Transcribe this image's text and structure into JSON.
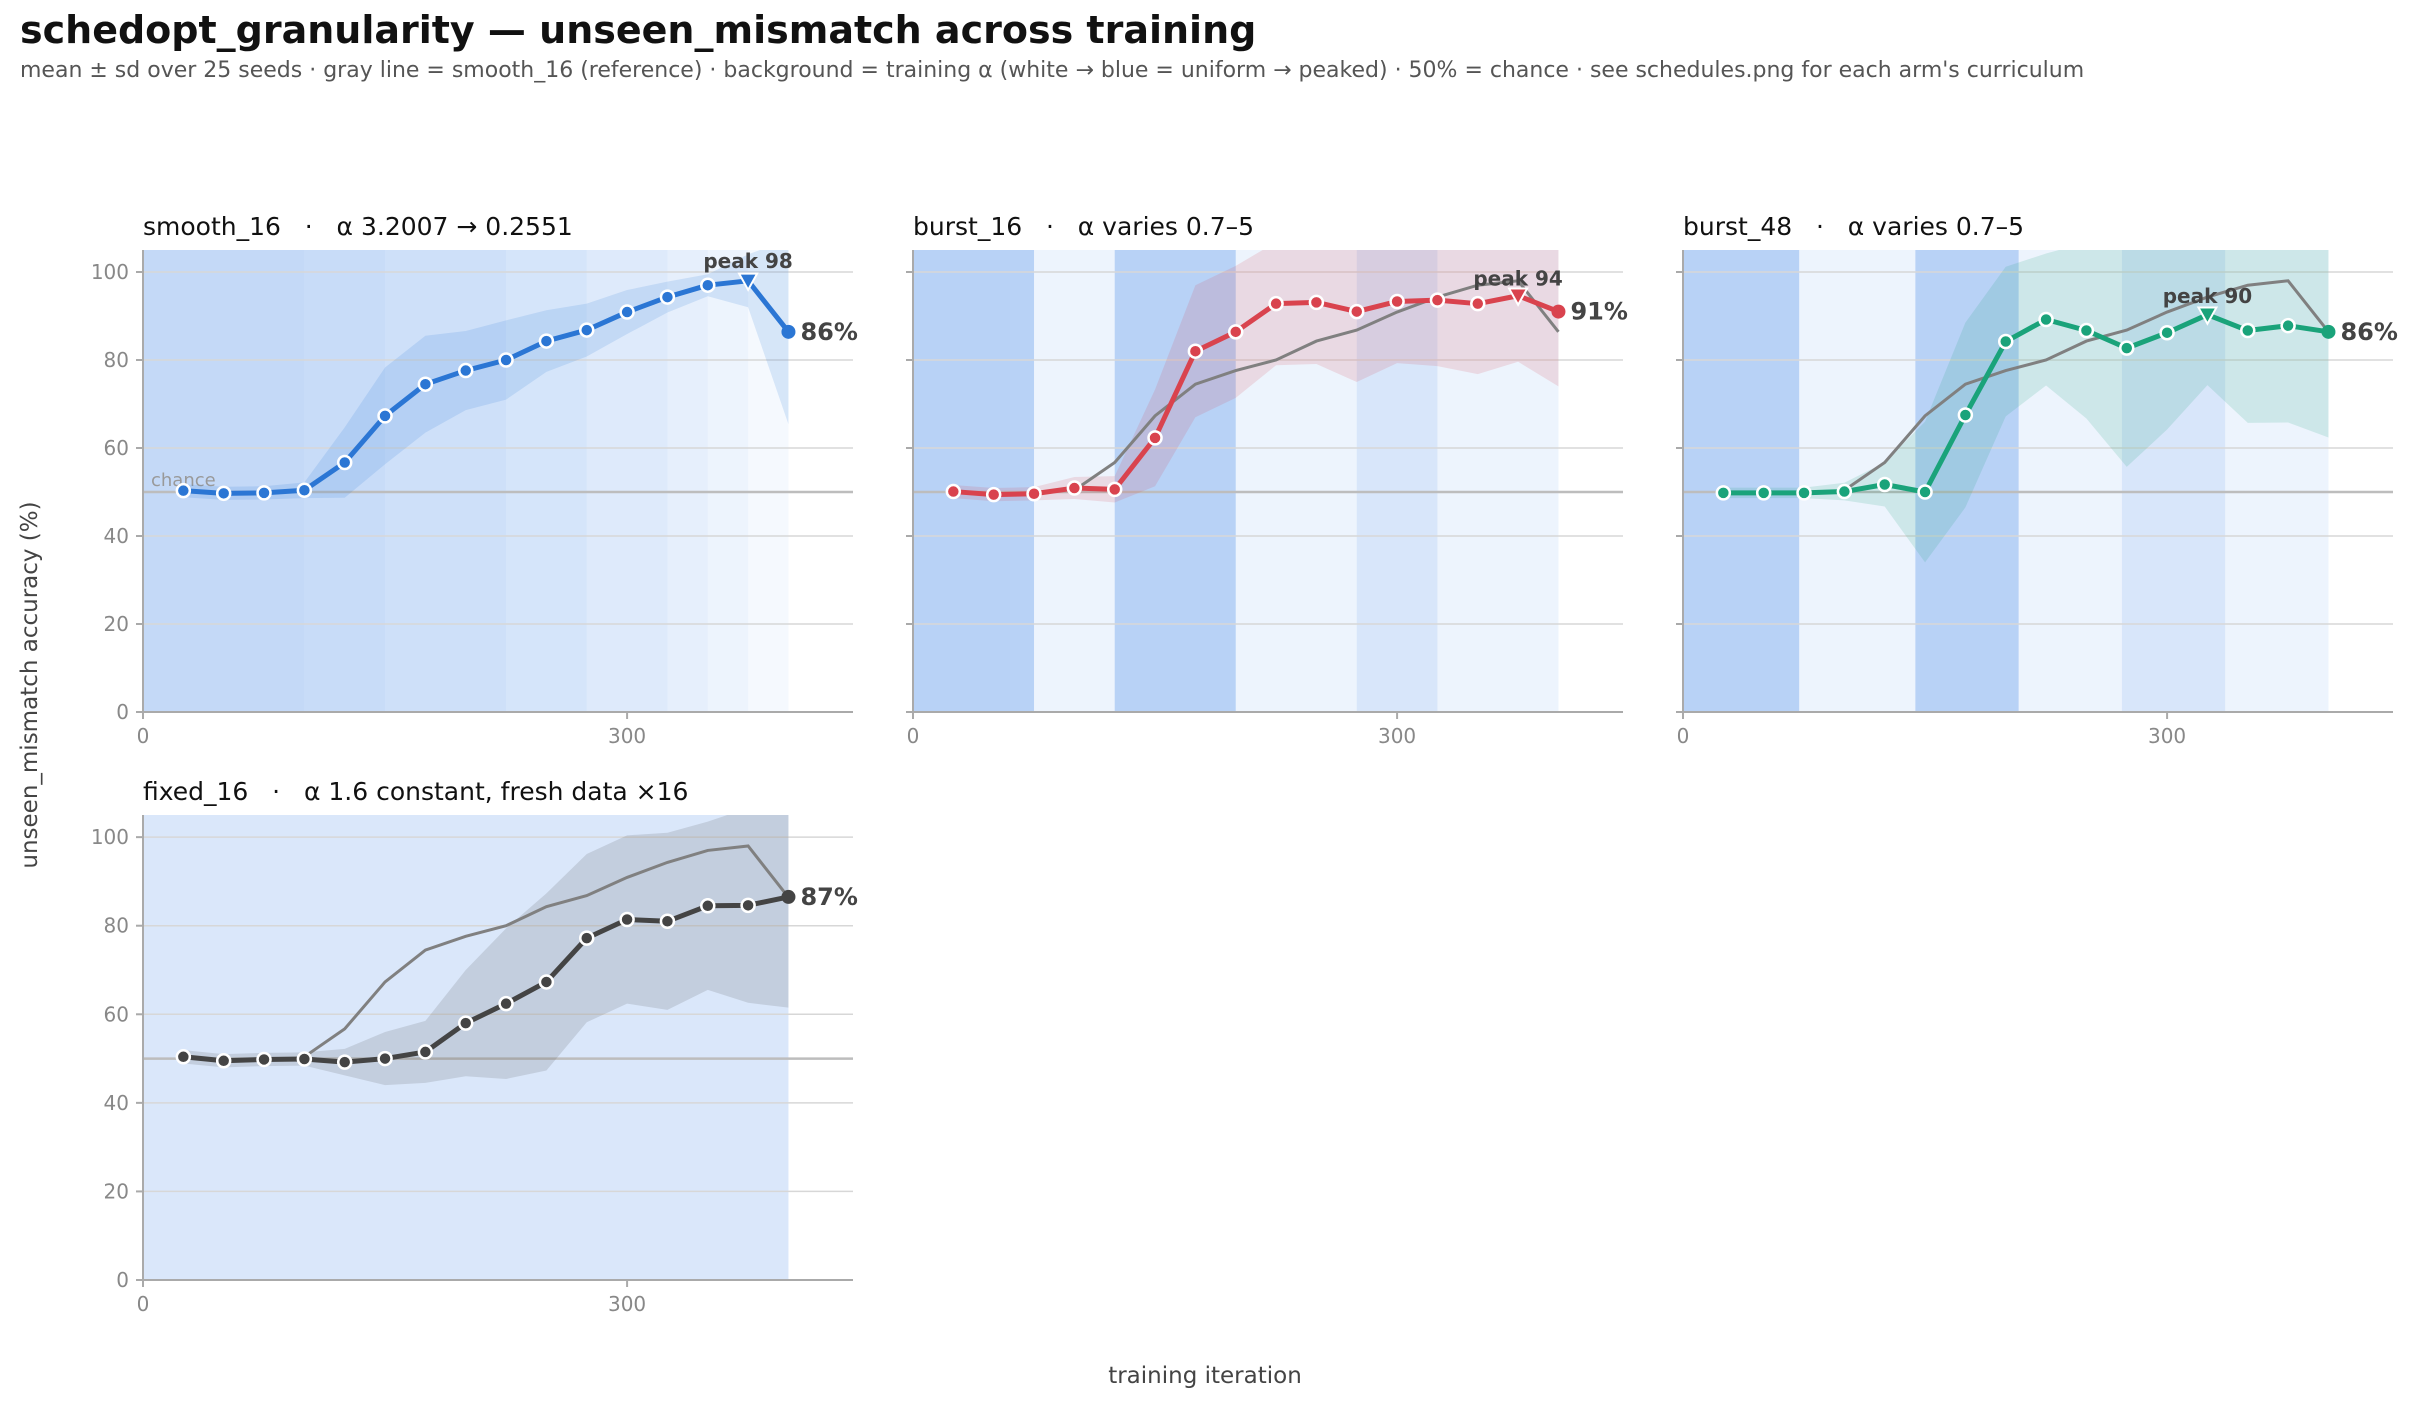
{
  "title": "schedopt_granularity — unseen_mismatch across training",
  "subtitle": "mean ± sd over 25 seeds · gray line = smooth_16 (reference) · background = training α (white → blue = uniform → peaked) · 50% = chance · see schedules.png for each arm's curriculum",
  "ylabel": "unseen_mismatch accuracy (%)",
  "xlabel": "training iteration",
  "chance_label": "chance",
  "colors": {
    "smooth_16": "#2b76d4",
    "burst_16": "#d9434e",
    "burst_48": "#1aa37a",
    "fixed_16": "#444444",
    "reference": "#808080",
    "alpha_bg": "#3b82e6"
  },
  "chart_data": [
    {
      "type": "line",
      "id": "smooth_16",
      "title": "smooth_16   ·   α 3.2007 → 0.2551",
      "x": [
        25,
        50,
        75,
        100,
        125,
        150,
        175,
        200,
        225,
        250,
        275,
        300,
        325,
        350,
        375,
        400
      ],
      "y": [
        50.3,
        49.7,
        49.8,
        50.4,
        56.7,
        67.3,
        74.5,
        77.6,
        80.0,
        84.3,
        86.8,
        90.9,
        94.3,
        97.0,
        98.0,
        86.4
      ],
      "sd": [
        1.5,
        1.5,
        1.5,
        1.8,
        8,
        11,
        11,
        9,
        9,
        7,
        6,
        5,
        3.5,
        2.5,
        6,
        21
      ],
      "end_label": "86%",
      "peak": {
        "label": "peak 98",
        "x": 375,
        "y": 98
      },
      "alpha_bands": [
        [
          0,
          100,
          0.3
        ],
        [
          100,
          150,
          0.28
        ],
        [
          150,
          225,
          0.25
        ],
        [
          225,
          275,
          0.21
        ],
        [
          275,
          325,
          0.17
        ],
        [
          325,
          350,
          0.13
        ],
        [
          350,
          375,
          0.09
        ],
        [
          375,
          400,
          0.05
        ]
      ],
      "xlim": [
        0,
        440
      ],
      "ylim": [
        0,
        105
      ],
      "xticks": [
        0,
        300
      ],
      "yticks": [
        0,
        20,
        40,
        60,
        80,
        100
      ]
    },
    {
      "type": "line",
      "id": "burst_16",
      "title": "burst_16   ·   α varies 0.7–5",
      "x": [
        25,
        50,
        75,
        100,
        125,
        150,
        175,
        200,
        225,
        250,
        275,
        300,
        325,
        350,
        375,
        400
      ],
      "y": [
        50.1,
        49.4,
        49.6,
        50.9,
        50.6,
        62.3,
        82.0,
        86.4,
        92.8,
        93.1,
        91.0,
        93.3,
        93.6,
        92.8,
        94.6,
        91.0
      ],
      "sd": [
        1.5,
        1.5,
        1.5,
        2.5,
        3,
        11,
        15,
        15,
        14,
        14,
        16,
        14,
        15,
        16,
        15,
        17
      ],
      "end_label": "91%",
      "peak": {
        "label": "peak 94",
        "x": 375,
        "y": 94
      },
      "alpha_bands": [
        [
          0,
          75,
          0.36
        ],
        [
          75,
          125,
          0.09
        ],
        [
          125,
          200,
          0.36
        ],
        [
          200,
          275,
          0.09
        ],
        [
          275,
          325,
          0.2
        ],
        [
          325,
          400,
          0.09
        ]
      ],
      "xlim": [
        0,
        440
      ],
      "ylim": [
        0,
        105
      ],
      "xticks": [
        0,
        300
      ],
      "yticks": [
        0,
        20,
        40,
        60,
        80,
        100
      ]
    },
    {
      "type": "line",
      "id": "burst_48",
      "title": "burst_48   ·   α varies 0.7–5",
      "x": [
        25,
        50,
        75,
        100,
        125,
        150,
        175,
        200,
        225,
        250,
        275,
        300,
        325,
        350,
        375,
        400
      ],
      "y": [
        49.8,
        49.8,
        49.8,
        50.1,
        51.7,
        50.0,
        67.5,
        84.2,
        89.2,
        86.7,
        82.7,
        86.2,
        90.3,
        86.7,
        87.8,
        86.4
      ],
      "sd": [
        1.2,
        1.2,
        1.2,
        2,
        5,
        16,
        21,
        17,
        15,
        20,
        27,
        22,
        16,
        21,
        22,
        24
      ],
      "end_label": "86%",
      "peak": {
        "label": "peak 90",
        "x": 325,
        "y": 90
      },
      "alpha_bands": [
        [
          0,
          72,
          0.36
        ],
        [
          72,
          144,
          0.09
        ],
        [
          144,
          208,
          0.36
        ],
        [
          208,
          272,
          0.09
        ],
        [
          272,
          336,
          0.2
        ],
        [
          336,
          400,
          0.09
        ]
      ],
      "xlim": [
        0,
        440
      ],
      "ylim": [
        0,
        105
      ],
      "xticks": [
        0,
        300
      ],
      "yticks": [
        0,
        20,
        40,
        60,
        80,
        100
      ]
    },
    {
      "type": "line",
      "id": "fixed_16",
      "title": "fixed_16   ·   α 1.6 constant, fresh data ×16",
      "x": [
        25,
        50,
        75,
        100,
        125,
        150,
        175,
        200,
        225,
        250,
        275,
        300,
        325,
        350,
        375,
        400
      ],
      "y": [
        50.4,
        49.5,
        49.8,
        49.9,
        49.2,
        50.0,
        51.5,
        58.0,
        62.4,
        67.3,
        77.2,
        81.4,
        81.0,
        84.5,
        84.6,
        86.5
      ],
      "sd": [
        1.5,
        1.5,
        1.5,
        1.5,
        3,
        6,
        7,
        12,
        17,
        20,
        19,
        19,
        20,
        19,
        22,
        25
      ],
      "end_label": "87%",
      "peak": null,
      "alpha_bands": [
        [
          0,
          400,
          0.19
        ]
      ],
      "xlim": [
        0,
        440
      ],
      "ylim": [
        0,
        105
      ],
      "xticks": [
        0,
        300
      ],
      "yticks": [
        0,
        20,
        40,
        60,
        80,
        100
      ]
    }
  ],
  "reference": {
    "x": [
      100,
      125,
      150,
      175,
      200,
      225,
      250,
      275,
      300,
      325,
      350,
      375,
      400
    ],
    "y": [
      50.4,
      56.7,
      67.3,
      74.5,
      77.6,
      80.0,
      84.3,
      86.8,
      90.9,
      94.3,
      97.0,
      98.0,
      86.4
    ]
  }
}
